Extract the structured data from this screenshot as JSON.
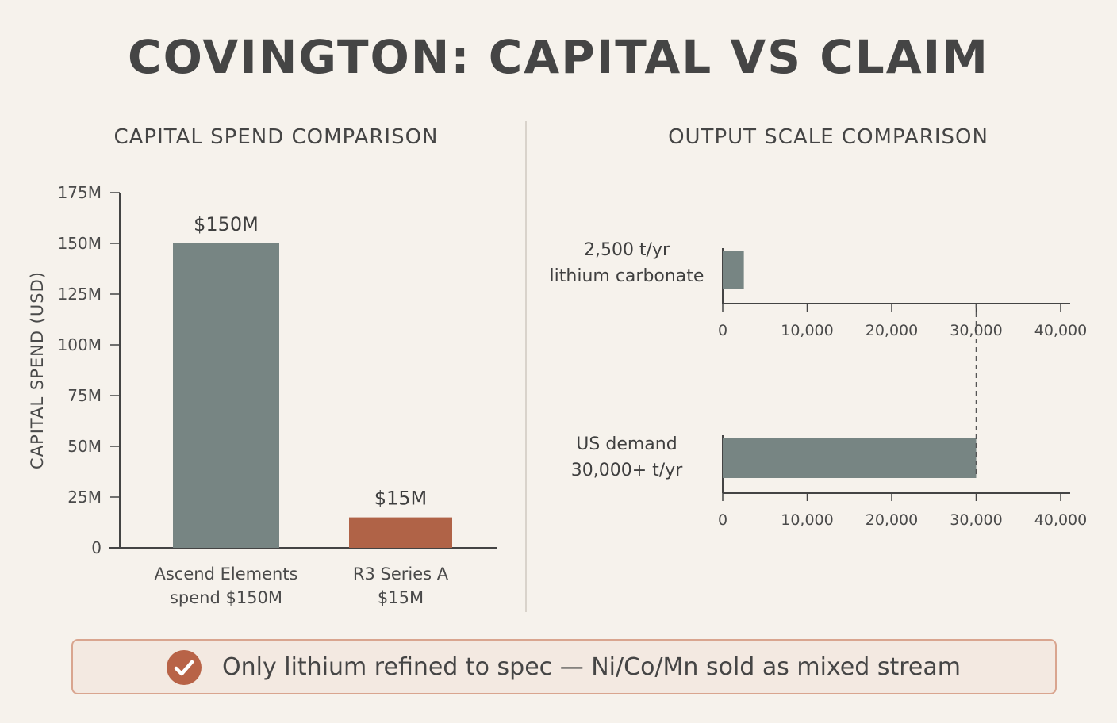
{
  "title": "COVINGTON: CAPITAL VS CLAIM",
  "colors": {
    "background": "#f6f2ec",
    "bar_gray": "#778583",
    "bar_rust": "#b06347",
    "axis": "#444444",
    "callout_border": "#d9a58f",
    "callout_fill": "#f3e9e1",
    "check_icon": "#b86347"
  },
  "chart_data": [
    {
      "type": "bar",
      "title": "CAPITAL SPEND COMPARISON",
      "ylabel": "CAPITAL SPEND (USD)",
      "xlabel": "",
      "ylim": [
        0,
        175000000
      ],
      "yticks": [
        {
          "value": 0,
          "label": "0"
        },
        {
          "value": 25000000,
          "label": "25M"
        },
        {
          "value": 50000000,
          "label": "50M"
        },
        {
          "value": 75000000,
          "label": "75M"
        },
        {
          "value": 100000000,
          "label": "100M"
        },
        {
          "value": 125000000,
          "label": "125M"
        },
        {
          "value": 150000000,
          "label": "150M"
        },
        {
          "value": 175000000,
          "label": "175M"
        }
      ],
      "categories": [
        [
          "Ascend Elements",
          "spend $150M"
        ],
        [
          "R3 Series A",
          "$15M"
        ]
      ],
      "values": [
        150000000,
        15000000
      ],
      "value_labels": [
        "$150M",
        "$15M"
      ],
      "bar_colors": [
        "#778583",
        "#b06347"
      ],
      "grid": false,
      "legend": "none"
    },
    {
      "type": "bar",
      "orientation": "horizontal",
      "title": "OUTPUT SCALE COMPARISON",
      "xlim": [
        0,
        40000
      ],
      "xticks": [
        "0",
        "10,000",
        "20,000",
        "30,000",
        "40,000"
      ],
      "xtick_values": [
        0,
        10000,
        20000,
        30000,
        40000
      ],
      "categories": [
        [
          "2,500 t/yr",
          "lithium carbonate"
        ],
        [
          "US demand",
          "30,000+ t/yr"
        ]
      ],
      "values": [
        2500,
        30000
      ],
      "reference_line": 30000,
      "bar_colors": [
        "#778583",
        "#778583"
      ],
      "grid": false,
      "legend": "none"
    }
  ],
  "callout": {
    "icon": "check-circle-icon",
    "text": "Only lithium refined to spec — Ni/Co/Mn sold as mixed stream"
  }
}
